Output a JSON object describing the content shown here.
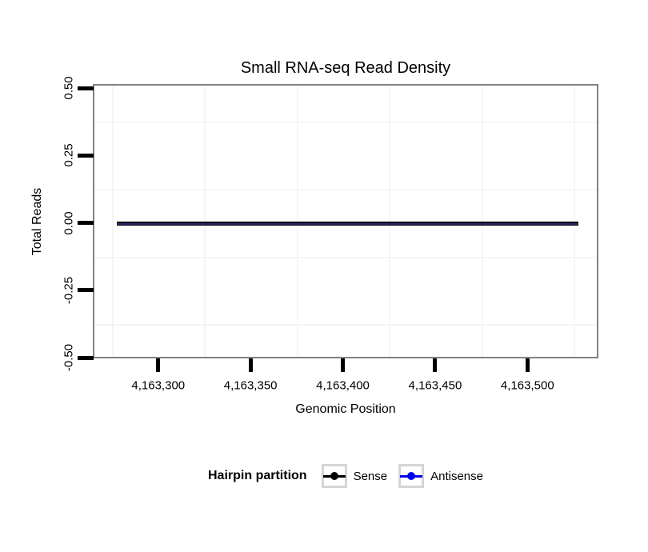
{
  "chart_data": {
    "type": "line",
    "title": "Small RNA-seq Read Density",
    "xlabel": "Genomic Position",
    "ylabel": "Total Reads",
    "xlim": [
      4163265,
      4163538
    ],
    "ylim": [
      -0.5,
      0.5
    ],
    "x_ticks": [
      {
        "value": 4163300,
        "label": "4,163,300"
      },
      {
        "value": 4163350,
        "label": "4,163,350"
      },
      {
        "value": 4163400,
        "label": "4,163,400"
      },
      {
        "value": 4163450,
        "label": "4,163,450"
      },
      {
        "value": 4163500,
        "label": "4,163,500"
      }
    ],
    "y_ticks": [
      {
        "value": 0.5,
        "label": "0.50"
      },
      {
        "value": 0.25,
        "label": "0.25"
      },
      {
        "value": 0,
        "label": "0.00"
      },
      {
        "value": -0.25,
        "label": "-0.25"
      },
      {
        "value": -0.5,
        "label": "-0.50"
      }
    ],
    "x_minor_gridlines": [
      4163275,
      4163325,
      4163375,
      4163425,
      4163475,
      4163525
    ],
    "y_minor_gridlines": [
      -0.375,
      -0.125,
      0.125,
      0.375
    ],
    "grid": "minor gridlines only, very light gray on white panel",
    "legend": {
      "title": "Hairpin partition",
      "position": "bottom",
      "entries": [
        {
          "label": "Sense",
          "color": "#000000"
        },
        {
          "label": "Antisense",
          "color": "#0000EE"
        }
      ]
    },
    "series": [
      {
        "name": "Sense",
        "color": "#000000",
        "x": [
          4163277,
          4163527
        ],
        "y": [
          0,
          0
        ],
        "stroke_px": 5
      },
      {
        "name": "Antisense",
        "color": "#0000EE",
        "x": [
          4163277,
          4163527
        ],
        "y": [
          0,
          0
        ],
        "stroke_px": 2,
        "rendered_overlap_color": "#28286A"
      }
    ]
  },
  "colors": {
    "background": "#FFFFFF",
    "panel_border": "#828282",
    "minor_gridline": "#F5F5F5",
    "tick_mark": "#000000",
    "legend_key_border": "#D5D5D5",
    "overlapped_line_center": "#28286A"
  }
}
